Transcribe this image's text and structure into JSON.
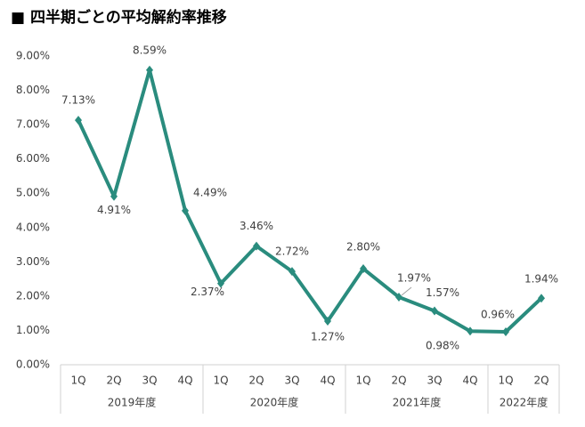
{
  "chart_data": {
    "type": "line",
    "title": "■ 四半期ごとの平均解約率推移",
    "groups": [
      {
        "name": "2019年度",
        "categories": [
          "1Q",
          "2Q",
          "3Q",
          "4Q"
        ]
      },
      {
        "name": "2020年度",
        "categories": [
          "1Q",
          "2Q",
          "3Q",
          "4Q"
        ]
      },
      {
        "name": "2021年度",
        "categories": [
          "1Q",
          "2Q",
          "3Q",
          "4Q"
        ]
      },
      {
        "name": "2022年度",
        "categories": [
          "1Q",
          "2Q"
        ]
      }
    ],
    "values": [
      7.13,
      4.91,
      8.59,
      4.49,
      2.37,
      3.46,
      2.72,
      1.27,
      2.8,
      1.97,
      1.57,
      0.98,
      0.96,
      1.94
    ],
    "value_labels": [
      "7.13%",
      "4.91%",
      "8.59%",
      "4.49%",
      "2.37%",
      "3.46%",
      "2.72%",
      "1.27%",
      "2.80%",
      "1.97%",
      "1.57%",
      "0.98%",
      "0.96%",
      "1.94%"
    ],
    "color": "#2a8c7e",
    "ylim": [
      0,
      9
    ],
    "yticks": [
      {
        "value": 0,
        "label": "0.00%"
      },
      {
        "value": 1,
        "label": "1.00%"
      },
      {
        "value": 2,
        "label": "2.00%"
      },
      {
        "value": 3,
        "label": "3.00%"
      },
      {
        "value": 4,
        "label": "4.00%"
      },
      {
        "value": 5,
        "label": "5.00%"
      },
      {
        "value": 6,
        "label": "6.00%"
      },
      {
        "value": 7,
        "label": "7.00%"
      },
      {
        "value": 8,
        "label": "8.00%"
      },
      {
        "value": 9,
        "label": "9.00%"
      }
    ],
    "grid": false
  }
}
